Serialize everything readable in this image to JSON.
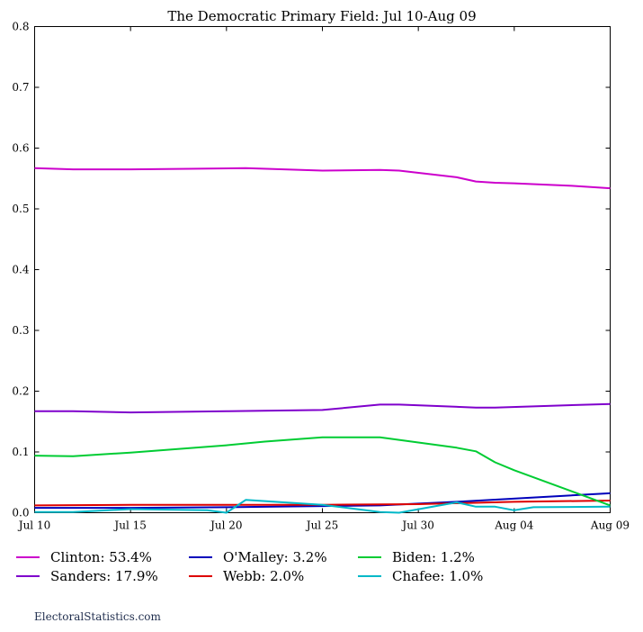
{
  "chart_data": {
    "type": "line",
    "title": "The Democratic Primary Field: Jul 10-Aug 09",
    "xlabel": "",
    "ylabel": "",
    "ylim": [
      0,
      0.8
    ],
    "yticks": [
      "0.0",
      "0.1",
      "0.2",
      "0.3",
      "0.4",
      "0.5",
      "0.6",
      "0.7",
      "0.8"
    ],
    "xticks": [
      "Jul 10",
      "Jul 15",
      "Jul 20",
      "Jul 25",
      "Jul 30",
      "Aug 04",
      "Aug 09"
    ],
    "xdomain": [
      "2015-07-10",
      "2015-08-09"
    ],
    "grid": false,
    "legend_position": "bottom",
    "series": [
      {
        "name": "Clinton",
        "legend_label": "Clinton: 53.4%",
        "color": "#cc00cc",
        "x": [
          "2015-07-10",
          "2015-07-12",
          "2015-07-15",
          "2015-07-18",
          "2015-07-21",
          "2015-07-25",
          "2015-07-28",
          "2015-07-29",
          "2015-08-01",
          "2015-08-02",
          "2015-08-03",
          "2015-08-04",
          "2015-08-07",
          "2015-08-09"
        ],
        "y": [
          0.567,
          0.565,
          0.565,
          0.566,
          0.567,
          0.563,
          0.564,
          0.563,
          0.552,
          0.545,
          0.543,
          0.542,
          0.538,
          0.534
        ]
      },
      {
        "name": "Sanders",
        "legend_label": "Sanders: 17.9%",
        "color": "#7f00cc",
        "x": [
          "2015-07-10",
          "2015-07-12",
          "2015-07-15",
          "2015-07-20",
          "2015-07-25",
          "2015-07-28",
          "2015-07-29",
          "2015-08-02",
          "2015-08-03",
          "2015-08-09"
        ],
        "y": [
          0.167,
          0.167,
          0.165,
          0.167,
          0.169,
          0.178,
          0.178,
          0.173,
          0.173,
          0.179
        ]
      },
      {
        "name": "O'Malley",
        "legend_label": "O'Malley: 3.2%",
        "color": "#0000bb",
        "x": [
          "2015-07-10",
          "2015-07-15",
          "2015-07-20",
          "2015-07-25",
          "2015-07-28",
          "2015-08-01",
          "2015-08-05",
          "2015-08-09"
        ],
        "y": [
          0.008,
          0.008,
          0.009,
          0.011,
          0.012,
          0.018,
          0.025,
          0.032
        ]
      },
      {
        "name": "Webb",
        "legend_label": "Webb: 2.0%",
        "color": "#dd0000",
        "x": [
          "2015-07-10",
          "2015-07-15",
          "2015-07-20",
          "2015-07-25",
          "2015-07-30",
          "2015-08-04",
          "2015-08-09"
        ],
        "y": [
          0.012,
          0.013,
          0.013,
          0.013,
          0.014,
          0.018,
          0.02
        ]
      },
      {
        "name": "Biden",
        "legend_label": "Biden: 1.2%",
        "color": "#00cc33",
        "x": [
          "2015-07-10",
          "2015-07-12",
          "2015-07-15",
          "2015-07-20",
          "2015-07-22",
          "2015-07-25",
          "2015-07-28",
          "2015-08-01",
          "2015-08-02",
          "2015-08-03",
          "2015-08-04",
          "2015-08-09"
        ],
        "y": [
          0.094,
          0.093,
          0.099,
          0.111,
          0.117,
          0.124,
          0.124,
          0.107,
          0.101,
          0.083,
          0.07,
          0.012
        ]
      },
      {
        "name": "Chafee",
        "legend_label": "Chafee: 1.0%",
        "color": "#00b8c8",
        "x": [
          "2015-07-10",
          "2015-07-12",
          "2015-07-15",
          "2015-07-19",
          "2015-07-20",
          "2015-07-21",
          "2015-07-25",
          "2015-07-28",
          "2015-07-29",
          "2015-08-01",
          "2015-08-02",
          "2015-08-03",
          "2015-08-04",
          "2015-08-05",
          "2015-08-09"
        ],
        "y": [
          0.001,
          0.001,
          0.006,
          0.004,
          0.0,
          0.021,
          0.013,
          0.001,
          0.0,
          0.017,
          0.01,
          0.01,
          0.004,
          0.009,
          0.01
        ]
      }
    ]
  },
  "credit": "ElectoralStatistics.com"
}
